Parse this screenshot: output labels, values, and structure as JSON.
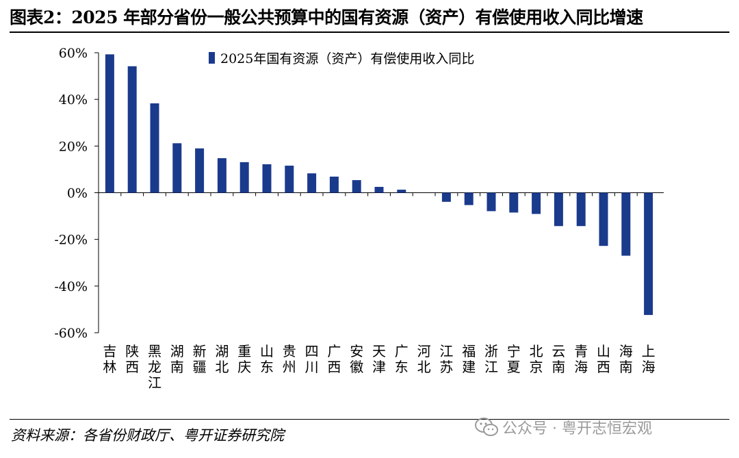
{
  "title": "图表2：2025 年部分省份一般公共预算中的国有资源（资产）有偿使用收入同比增速",
  "source": "资料来源：各省份财政厅、粤开证券研究院",
  "watermark": {
    "text": "公众号 · 粤开志恒宏观",
    "icon": "wechat-icon"
  },
  "chart_data": {
    "type": "bar",
    "categories": [
      "吉林",
      "陕西",
      "黑龙江",
      "湖南",
      "新疆",
      "湖北",
      "重庆",
      "山东",
      "贵州",
      "四川",
      "广西",
      "安徽",
      "天津",
      "广东",
      "河北",
      "江苏",
      "福建",
      "浙江",
      "宁夏",
      "北京",
      "云南",
      "青海",
      "山西",
      "海南",
      "上海"
    ],
    "series": [
      {
        "name": "2025年国有资源（资产）有偿使用收入同比",
        "color": "#1a3a8c",
        "values": [
          59.3,
          54.2,
          38.3,
          21.2,
          19.0,
          14.8,
          13.1,
          12.2,
          11.6,
          8.3,
          6.9,
          5.4,
          2.5,
          1.3,
          0.0,
          -3.9,
          -5.3,
          -7.9,
          -8.5,
          -9.1,
          -14.3,
          -14.3,
          -22.8,
          -27.0,
          -52.4
        ]
      }
    ],
    "ylim": [
      -60,
      60
    ],
    "yticks": [
      60,
      40,
      20,
      0,
      -20,
      -40,
      -60
    ],
    "ytick_labels": [
      "60%",
      "40%",
      "20%",
      "0%",
      "-20%",
      "-40%",
      "-60%"
    ],
    "legend_position": "top-center",
    "grid": false
  }
}
